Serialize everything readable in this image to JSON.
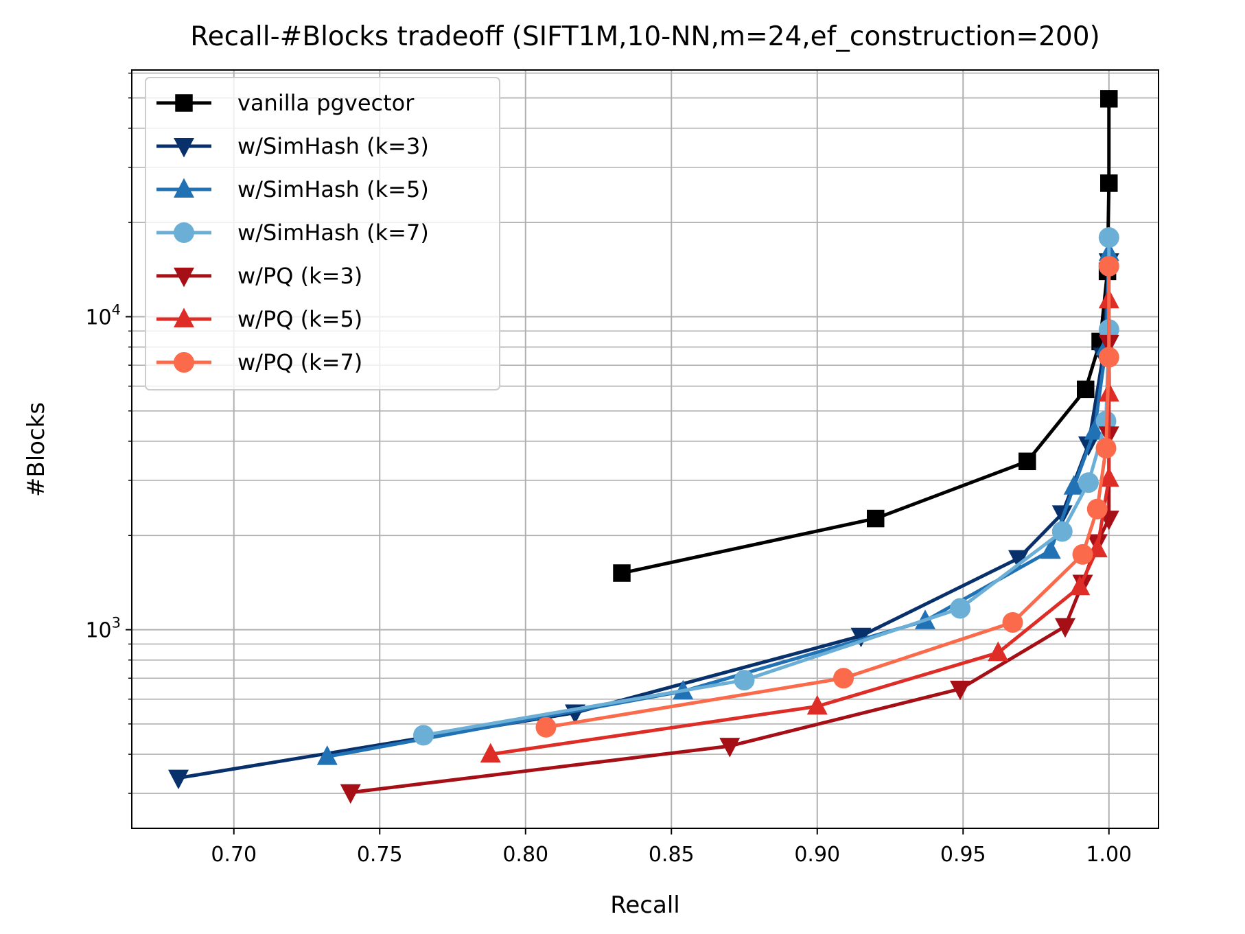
{
  "chart_data": {
    "type": "line",
    "title": "Recall-#Blocks tradeoff (SIFT1M,10-NN,m=24,ef_construction=200)",
    "xlabel": "Recall",
    "ylabel": "#Blocks",
    "xlim": [
      0.665,
      1.017
    ],
    "ylim": [
      232,
      61400
    ],
    "yscale": "log",
    "grid": true,
    "legend_position": "top-left",
    "xticks": [
      "0.70",
      "0.75",
      "0.80",
      "0.85",
      "0.90",
      "0.95",
      "1.00"
    ],
    "yticks": [
      {
        "value": 1000,
        "base": "10",
        "exp": "3"
      },
      {
        "value": 10000,
        "base": "10",
        "exp": "4"
      }
    ],
    "series": [
      {
        "name": "vanilla pgvector",
        "color": "#000000",
        "marker": "square",
        "points": [
          [
            0.833,
            1517
          ],
          [
            0.92,
            2266
          ],
          [
            0.972,
            3450
          ],
          [
            0.992,
            5860
          ],
          [
            0.997,
            8340
          ],
          [
            0.9995,
            13960
          ],
          [
            1.0,
            26700
          ],
          [
            1.0,
            49700
          ]
        ]
      },
      {
        "name": "w/SimHash (k=3)",
        "color": "#08306b",
        "marker": "triangle-down",
        "points": [
          [
            0.681,
            336
          ],
          [
            0.817,
            543
          ],
          [
            0.915,
            955
          ],
          [
            0.969,
            1690
          ],
          [
            0.984,
            2350
          ],
          [
            0.993,
            3900
          ],
          [
            0.998,
            7500
          ],
          [
            1.0,
            15000
          ]
        ]
      },
      {
        "name": "w/SimHash (k=5)",
        "color": "#2171b5",
        "marker": "triangle-up",
        "points": [
          [
            0.732,
            393
          ],
          [
            0.854,
            636
          ],
          [
            0.937,
            1067
          ],
          [
            0.98,
            1790
          ],
          [
            0.988,
            2870
          ],
          [
            0.995,
            4300
          ],
          [
            0.999,
            8000
          ],
          [
            1.0,
            16000
          ]
        ]
      },
      {
        "name": "w/SimHash (k=7)",
        "color": "#6baed6",
        "marker": "circle",
        "points": [
          [
            0.765,
            460
          ],
          [
            0.875,
            690
          ],
          [
            0.949,
            1170
          ],
          [
            0.984,
            2060
          ],
          [
            0.993,
            2950
          ],
          [
            0.999,
            4640
          ],
          [
            1.0,
            9100
          ],
          [
            1.0,
            17900
          ]
        ]
      },
      {
        "name": "w/PQ (k=3)",
        "color": "#a50f15",
        "marker": "triangle-down",
        "points": [
          [
            0.74,
            302
          ],
          [
            0.87,
            425
          ],
          [
            0.949,
            647
          ],
          [
            0.985,
            1025
          ],
          [
            0.991,
            1410
          ],
          [
            0.996,
            1900
          ],
          [
            1.0,
            2260
          ],
          [
            1.0,
            4200
          ],
          [
            1.0,
            8240
          ]
        ]
      },
      {
        "name": "w/PQ (k=5)",
        "color": "#de2d26",
        "marker": "triangle-up",
        "points": [
          [
            0.788,
            400
          ],
          [
            0.9,
            569
          ],
          [
            0.962,
            844
          ],
          [
            0.99,
            1370
          ],
          [
            0.996,
            1810
          ],
          [
            1.0,
            3040
          ],
          [
            1.0,
            5690
          ],
          [
            1.0,
            11300
          ]
        ]
      },
      {
        "name": "w/PQ (k=7)",
        "color": "#fb6a4a",
        "marker": "circle",
        "points": [
          [
            0.807,
            488
          ],
          [
            0.909,
            700
          ],
          [
            0.967,
            1055
          ],
          [
            0.991,
            1740
          ],
          [
            0.996,
            2430
          ],
          [
            0.999,
            3800
          ],
          [
            1.0,
            7420
          ],
          [
            1.0,
            14500
          ]
        ]
      }
    ]
  }
}
